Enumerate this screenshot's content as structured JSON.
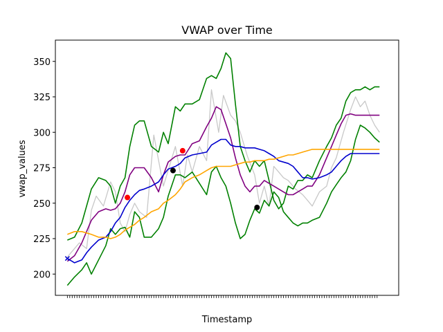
{
  "chart_data": {
    "type": "line",
    "title": "VWAP over Time",
    "xlabel": "Timestamp",
    "ylabel": "vwap_values",
    "ylim": [
      185,
      365
    ],
    "xlim": [
      -5,
      138
    ],
    "yticks": [
      200,
      225,
      250,
      275,
      300,
      325,
      350
    ],
    "x_tick_count": 130,
    "grid": false,
    "series": [
      {
        "color": "#c8c8c8",
        "x": [
          0,
          5,
          8,
          10,
          12,
          15,
          18,
          20,
          22,
          24,
          26,
          28,
          30,
          33,
          36,
          40,
          45,
          48,
          50,
          52,
          55,
          58,
          60,
          63,
          65,
          68,
          70,
          72,
          75,
          78,
          80,
          82,
          84,
          86,
          88,
          90,
          92,
          95,
          98,
          100,
          102,
          105,
          108,
          110,
          112,
          115,
          118,
          120,
          122,
          124,
          126,
          128,
          130
        ],
        "y": [
          212,
          222,
          218,
          245,
          255,
          248,
          265,
          258,
          236,
          230,
          242,
          250,
          244,
          240,
          298,
          262,
          290,
          262,
          284,
          272,
          290,
          280,
          330,
          300,
          326,
          312,
          308,
          300,
          283,
          270,
          250,
          262,
          248,
          276,
          272,
          268,
          266,
          260,
          256,
          252,
          248,
          258,
          262,
          275,
          282,
          300,
          316,
          325,
          318,
          322,
          312,
          305,
          300
        ]
      },
      {
        "color": "#008000",
        "x": [
          0,
          3,
          6,
          8,
          10,
          13,
          16,
          18,
          20,
          22,
          24,
          26,
          28,
          30,
          32,
          35,
          38,
          40,
          42,
          45,
          47,
          49,
          52,
          55,
          58,
          60,
          62,
          64,
          66,
          68,
          70,
          72,
          74,
          76,
          78,
          80,
          82,
          84,
          86,
          88,
          90,
          92,
          94,
          96,
          98,
          100,
          102,
          105,
          108,
          110,
          112,
          114,
          116,
          118,
          120,
          122,
          124,
          126,
          128,
          130
        ],
        "y": [
          192,
          198,
          203,
          208,
          200,
          210,
          220,
          232,
          228,
          232,
          233,
          226,
          244,
          240,
          226,
          226,
          232,
          240,
          255,
          270,
          270,
          268,
          272,
          264,
          256,
          272,
          276,
          268,
          262,
          250,
          236,
          225,
          228,
          238,
          246,
          243,
          252,
          248,
          258,
          254,
          244,
          240,
          236,
          234,
          236,
          236,
          238,
          240,
          250,
          258,
          263,
          268,
          272,
          280,
          295,
          305,
          303,
          300,
          296,
          293
        ]
      },
      {
        "color": "#008000",
        "x": [
          0,
          3,
          6,
          8,
          10,
          13,
          16,
          18,
          20,
          22,
          24,
          26,
          28,
          30,
          32,
          35,
          38,
          40,
          42,
          45,
          47,
          49,
          52,
          55,
          58,
          60,
          62,
          64,
          66,
          68,
          70,
          72,
          74,
          76,
          78,
          80,
          82,
          84,
          86,
          88,
          90,
          92,
          94,
          96,
          98,
          100,
          102,
          105,
          108,
          110,
          112,
          114,
          116,
          118,
          120,
          122,
          124,
          126,
          128,
          130
        ],
        "y": [
          224,
          226,
          236,
          248,
          260,
          268,
          266,
          262,
          250,
          262,
          268,
          290,
          305,
          308,
          308,
          290,
          286,
          300,
          292,
          318,
          315,
          320,
          320,
          323,
          338,
          340,
          338,
          345,
          356,
          352,
          320,
          290,
          280,
          272,
          280,
          276,
          280,
          266,
          252,
          246,
          250,
          262,
          260,
          266,
          266,
          270,
          268,
          280,
          290,
          296,
          305,
          310,
          322,
          328,
          330,
          330,
          332,
          330,
          332,
          332
        ]
      },
      {
        "color": "#800080",
        "x": [
          0,
          3,
          6,
          8,
          10,
          13,
          16,
          18,
          20,
          22,
          24,
          26,
          28,
          30,
          32,
          35,
          38,
          40,
          42,
          45,
          47,
          49,
          52,
          55,
          58,
          60,
          62,
          64,
          66,
          68,
          70,
          72,
          74,
          76,
          78,
          80,
          82,
          84,
          86,
          88,
          90,
          92,
          94,
          96,
          98,
          100,
          102,
          105,
          108,
          110,
          112,
          114,
          116,
          118,
          120,
          122,
          124,
          126,
          128,
          130
        ],
        "y": [
          209,
          213,
          222,
          230,
          238,
          244,
          246,
          245,
          246,
          250,
          258,
          270,
          275,
          275,
          275,
          268,
          258,
          270,
          279,
          283,
          284,
          284,
          292,
          294,
          304,
          310,
          318,
          316,
          306,
          296,
          282,
          270,
          262,
          258,
          262,
          262,
          266,
          264,
          262,
          260,
          258,
          256,
          256,
          258,
          260,
          262,
          262,
          270,
          282,
          290,
          298,
          306,
          312,
          313,
          312,
          312,
          312,
          312,
          312,
          312
        ]
      },
      {
        "color": "#0000cd",
        "x": [
          0,
          3,
          6,
          8,
          10,
          13,
          16,
          18,
          20,
          22,
          24,
          26,
          28,
          30,
          32,
          35,
          38,
          40,
          42,
          45,
          47,
          49,
          52,
          55,
          58,
          60,
          62,
          64,
          66,
          68,
          70,
          72,
          74,
          76,
          78,
          80,
          82,
          84,
          86,
          88,
          90,
          92,
          94,
          96,
          98,
          100,
          102,
          105,
          108,
          110,
          112,
          114,
          116,
          118,
          120,
          122,
          124,
          126,
          128,
          130
        ],
        "y": [
          211,
          208,
          210,
          215,
          219,
          224,
          226,
          230,
          236,
          240,
          247,
          252,
          256,
          259,
          260,
          262,
          265,
          270,
          274,
          276,
          278,
          282,
          284,
          285,
          286,
          291,
          293,
          295,
          295,
          291,
          290,
          290,
          289,
          289,
          289,
          288,
          287,
          285,
          283,
          280,
          279,
          278,
          276,
          272,
          268,
          268,
          267,
          268,
          270,
          272,
          276,
          280,
          283,
          285,
          285,
          285,
          285,
          285,
          285,
          285
        ]
      },
      {
        "color": "#ffa500",
        "x": [
          0,
          3,
          6,
          8,
          10,
          13,
          16,
          18,
          20,
          22,
          24,
          26,
          28,
          30,
          32,
          35,
          38,
          40,
          42,
          45,
          47,
          49,
          52,
          55,
          58,
          60,
          62,
          64,
          66,
          68,
          70,
          72,
          74,
          76,
          78,
          80,
          82,
          84,
          86,
          88,
          90,
          92,
          94,
          96,
          98,
          100,
          102,
          105,
          108,
          110,
          112,
          114,
          116,
          118,
          120,
          122,
          124,
          126,
          128,
          130
        ],
        "y": [
          228,
          230,
          230,
          229,
          228,
          226,
          226,
          225,
          226,
          228,
          231,
          233,
          235,
          238,
          240,
          244,
          246,
          250,
          252,
          256,
          260,
          265,
          268,
          270,
          273,
          275,
          276,
          276,
          276,
          276,
          277,
          278,
          279,
          279,
          280,
          280,
          280,
          281,
          281,
          282,
          283,
          284,
          284,
          285,
          286,
          287,
          288,
          288,
          288,
          288,
          288,
          288,
          288,
          288,
          288,
          288,
          288,
          288,
          288,
          288
        ]
      }
    ],
    "markers": [
      {
        "x": 0,
        "y": 211,
        "color": "#0000cd",
        "symbol": "x"
      },
      {
        "x": 25,
        "y": 254,
        "color": "#ff0000",
        "symbol": "circle"
      },
      {
        "x": 44,
        "y": 273,
        "color": "#000000",
        "symbol": "circle"
      },
      {
        "x": 48,
        "y": 287,
        "color": "#ff0000",
        "symbol": "circle"
      },
      {
        "x": 79,
        "y": 247,
        "color": "#000000",
        "symbol": "circle"
      }
    ]
  }
}
